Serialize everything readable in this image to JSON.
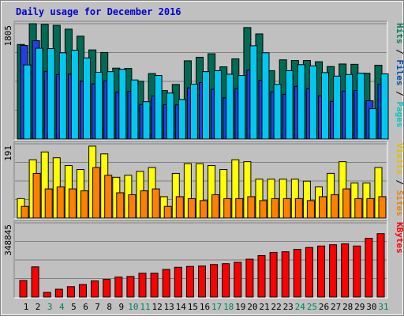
{
  "chart_data": {
    "type": "bar",
    "title": "Daily usage for December 2016",
    "categories": [
      "1",
      "2",
      "3",
      "4",
      "5",
      "6",
      "7",
      "8",
      "9",
      "10",
      "11",
      "12",
      "13",
      "14",
      "15",
      "16",
      "17",
      "18",
      "19",
      "20",
      "21",
      "22",
      "23",
      "24",
      "25",
      "26",
      "27",
      "28",
      "29",
      "30",
      "31"
    ],
    "weekend_days": [
      "3",
      "4",
      "10",
      "11",
      "17",
      "18",
      "24",
      "25",
      "31"
    ],
    "panels": [
      {
        "id": "hits-panel",
        "max_label": "1805",
        "ylim": [
          0,
          1805
        ],
        "legend": [
          {
            "text": "Pages",
            "color": "#00c8c8"
          },
          {
            "text": " / ",
            "color": "#000000"
          },
          {
            "text": "Files",
            "color": "#0050b0"
          },
          {
            "text": " / ",
            "color": "#000000"
          },
          {
            "text": "Hits",
            "color": "#008060"
          }
        ],
        "series": [
          {
            "name": "Hits",
            "color": "#006b54",
            "values": [
              1480,
              1805,
              1795,
              1780,
              1720,
              1610,
              1395,
              1355,
              1110,
              1105,
              905,
              1025,
              760,
              855,
              1225,
              1280,
              1335,
              1130,
              1255,
              1745,
              1645,
              1070,
              1240,
              1230,
              1230,
              1210,
              1135,
              1175,
              1170,
              1030,
              1155
            ]
          },
          {
            "name": "Files",
            "color": "#2040e0",
            "values": [
              1465,
              1540,
              1060,
              1010,
              1015,
              905,
              865,
              910,
              735,
              745,
              540,
              675,
              540,
              535,
              800,
              885,
              780,
              645,
              790,
              1080,
              920,
              740,
              700,
              825,
              790,
              675,
              590,
              750,
              760,
              600,
              860
            ]
          },
          {
            "name": "Pages",
            "color": "#00c8f0",
            "values": [
              1160,
              1420,
              1415,
              1350,
              1390,
              1270,
              1045,
              1055,
              1090,
              925,
              585,
              995,
              720,
              620,
              860,
              1055,
              1070,
              1015,
              995,
              1460,
              1350,
              855,
              1070,
              1165,
              1145,
              1040,
              985,
              1010,
              1030,
              475,
              1020
            ]
          }
        ]
      },
      {
        "id": "visits-panel",
        "max_label": "191",
        "ylim": [
          0,
          191
        ],
        "legend": [
          {
            "text": "Sites",
            "color": "#f08000"
          },
          {
            "text": " / ",
            "color": "#000000"
          },
          {
            "text": "Visits",
            "color": "#e0c000"
          }
        ],
        "series": [
          {
            "name": "Visits",
            "color": "#ffff00",
            "values": [
              50,
              150,
              170,
              155,
              135,
              125,
              185,
              165,
              105,
              110,
              120,
              130,
              55,
              115,
              140,
              140,
              135,
              125,
              150,
              145,
              100,
              100,
              100,
              100,
              95,
              80,
              115,
              145,
              90,
              90,
              130
            ]
          },
          {
            "name": "Sites",
            "color": "#ff8000",
            "values": [
              30,
              115,
              75,
              80,
              75,
              70,
              130,
              110,
              65,
              60,
              70,
              75,
              30,
              55,
              50,
              45,
              60,
              50,
              50,
              55,
              45,
              50,
              50,
              50,
              45,
              55,
              60,
              75,
              50,
              50,
              55
            ]
          }
        ]
      },
      {
        "id": "kbytes-panel",
        "max_label": "348845",
        "ylim": [
          0,
          348845
        ],
        "legend": [
          {
            "text": "KBytes",
            "color": "#ff0000"
          }
        ],
        "series": [
          {
            "name": "KBytes",
            "color": "#ff0000",
            "values": [
              78000,
              142000,
              22000,
              37000,
              49000,
              59000,
              76000,
              83000,
              94000,
              97000,
              112000,
              112000,
              130000,
              140000,
              144000,
              146000,
              153000,
              157000,
              163000,
              178000,
              195000,
              210000,
              213000,
              224000,
              233000,
              240000,
              246000,
              250000,
              240000,
              276000,
              298000
            ]
          }
        ]
      }
    ]
  }
}
